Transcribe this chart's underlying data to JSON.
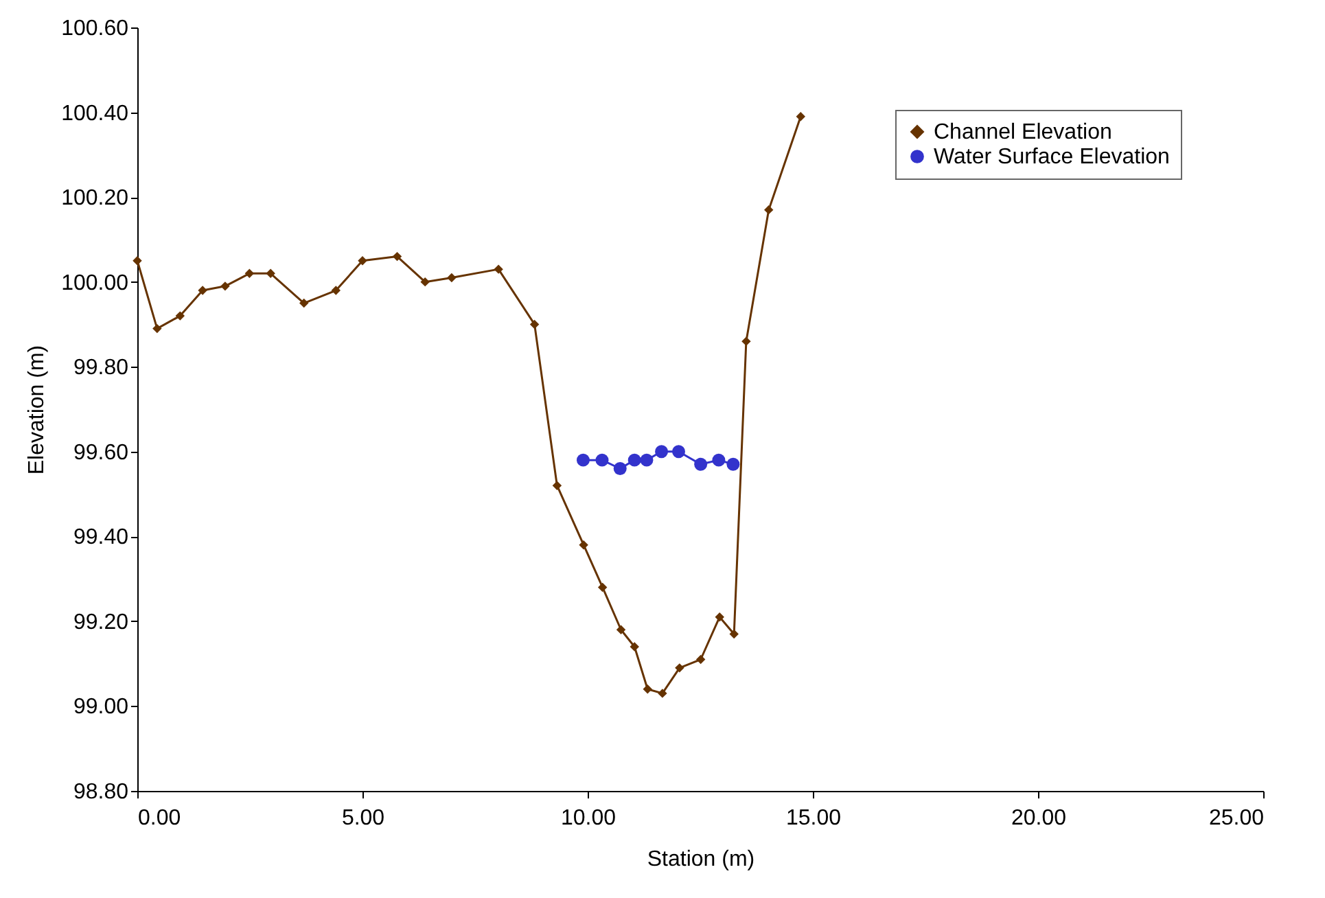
{
  "chart_data": {
    "type": "line",
    "xlabel": "Station (m)",
    "ylabel": "Elevation (m)",
    "xlim": [
      0,
      25
    ],
    "ylim": [
      98.8,
      100.6
    ],
    "xticks": [
      {
        "value": 0,
        "label": "0.00"
      },
      {
        "value": 5,
        "label": "5.00"
      },
      {
        "value": 10,
        "label": "10.00"
      },
      {
        "value": 15,
        "label": "15.00"
      },
      {
        "value": 20,
        "label": "20.00"
      },
      {
        "value": 25,
        "label": "25.00"
      }
    ],
    "yticks": [
      {
        "value": 98.8,
        "label": "98.80"
      },
      {
        "value": 99,
        "label": "99.00"
      },
      {
        "value": 99.2,
        "label": "99.20"
      },
      {
        "value": 99.4,
        "label": "99.40"
      },
      {
        "value": 99.6,
        "label": "99.60"
      },
      {
        "value": 99.8,
        "label": "99.80"
      },
      {
        "value": 100,
        "label": "100.00"
      },
      {
        "value": 100.2,
        "label": "100.20"
      },
      {
        "value": 100.4,
        "label": "100.40"
      },
      {
        "value": 100.6,
        "label": "100.60"
      }
    ],
    "grid": false,
    "legend": "top right",
    "series": [
      {
        "name": "Channel Elevation",
        "color": "#663300",
        "marker": "diamond",
        "x": [
          0,
          0.44,
          0.95,
          1.45,
          1.95,
          2.49,
          2.96,
          3.7,
          4.41,
          5.0,
          5.77,
          6.39,
          6.98,
          8.02,
          8.82,
          9.32,
          9.91,
          10.33,
          10.74,
          11.04,
          11.33,
          11.66,
          12.04,
          12.51,
          12.93,
          13.25,
          13.52,
          14.02,
          14.73
        ],
        "values": [
          100.05,
          99.89,
          99.92,
          99.98,
          99.99,
          100.02,
          100.02,
          99.95,
          99.98,
          100.05,
          100.06,
          100.0,
          100.01,
          100.03,
          99.9,
          99.52,
          99.38,
          99.28,
          99.18,
          99.14,
          99.04,
          99.03,
          99.09,
          99.11,
          99.21,
          99.17,
          99.86,
          100.17,
          100.39
        ]
      },
      {
        "name": "Water Surface Elevation",
        "color": "#3333cc",
        "marker": "circle",
        "x": [
          9.9,
          10.32,
          10.72,
          11.04,
          11.31,
          11.64,
          12.02,
          12.51,
          12.91,
          13.23
        ],
        "values": [
          99.58,
          99.58,
          99.56,
          99.58,
          99.58,
          99.6,
          99.6,
          99.57,
          99.58,
          99.57
        ]
      }
    ]
  }
}
